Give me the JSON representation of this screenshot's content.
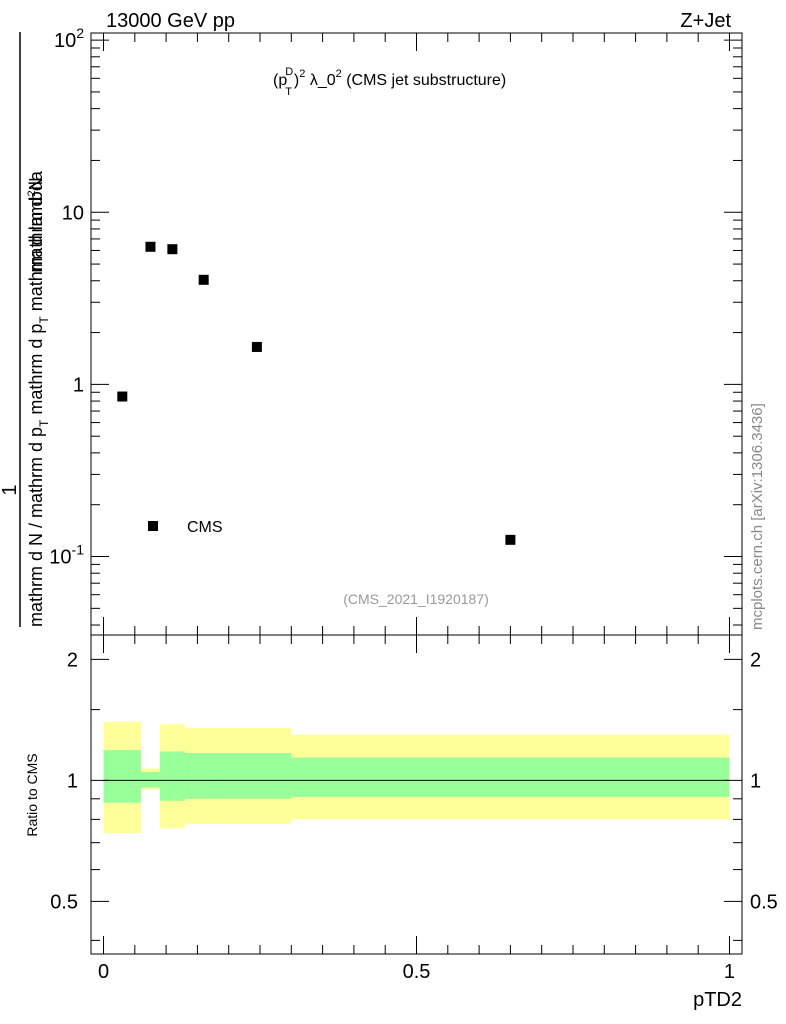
{
  "header": {
    "energy_label": "13000 GeV pp",
    "process_label": "Z+Jet",
    "watermark": "mcplots.cern.ch [arXiv:1306.3436]"
  },
  "chart_data": [
    {
      "type": "scatter",
      "panel": "main",
      "title": "(p_T^D)^2 λ_0^2 (CMS jet substructure)",
      "title_parts": {
        "p": "(p",
        "sub": "T",
        "sup_d": "D",
        "rest": ")",
        "sup2": "2",
        "lambda": " λ_0",
        "sup3": "2",
        "tail": " (CMS jet substructure)"
      },
      "ylabel_parts": {
        "numerator": "1",
        "denominator": "mathrm d N / mathrm d p",
        "denom_sub": "T",
        "denom_tail": " mathrm d p",
        "denom_sub2": "T",
        "denom_end": " mathrm d lambda",
        "frac_num": "mathrm d",
        "frac_sup": "2",
        "frac_num_end": "N"
      },
      "yscale": "log",
      "ylim": [
        0.035,
        110
      ],
      "xlim": [
        -0.02,
        1.02
      ],
      "y_ticks": [
        "10^-1",
        "1",
        "10",
        "10^2"
      ],
      "legend": {
        "placement": "bottom-left",
        "entries": [
          "CMS"
        ]
      },
      "annotation": "(CMS_2021_I1920187)",
      "series": [
        {
          "name": "CMS",
          "marker": "square",
          "color": "#000000",
          "x": [
            0.03,
            0.075,
            0.11,
            0.16,
            0.245,
            0.65
          ],
          "y": [
            0.85,
            6.3,
            6.1,
            4.05,
            1.65,
            0.125
          ]
        }
      ]
    },
    {
      "type": "area",
      "panel": "ratio",
      "ylabel": "Ratio to CMS",
      "xlabel": "pTD2",
      "ylim": [
        0.37,
        2.3
      ],
      "xlim": [
        -0.02,
        1.02
      ],
      "y_ticks": [
        "0.5",
        "1",
        "2"
      ],
      "x_ticks": [
        "0",
        "0.5",
        "1"
      ],
      "reference_line": 1,
      "bands": [
        {
          "color": "#ffff99",
          "name": "",
          "bins": [
            [
              0,
              0.06,
              0.74,
              1.4
            ],
            [
              0.06,
              0.09,
              0.95,
              1.07
            ],
            [
              0.09,
              0.13,
              0.76,
              1.38
            ],
            [
              0.13,
              0.19,
              0.78,
              1.35
            ],
            [
              0.19,
              0.3,
              0.78,
              1.35
            ],
            [
              0.3,
              1.0,
              0.8,
              1.3
            ]
          ]
        },
        {
          "color": "#99ff99",
          "name": "",
          "bins": [
            [
              0,
              0.06,
              0.88,
              1.19
            ],
            [
              0.06,
              0.09,
              0.96,
              1.05
            ],
            [
              0.09,
              0.13,
              0.89,
              1.18
            ],
            [
              0.13,
              0.19,
              0.9,
              1.17
            ],
            [
              0.19,
              0.3,
              0.9,
              1.17
            ],
            [
              0.3,
              1.0,
              0.91,
              1.14
            ]
          ]
        }
      ]
    }
  ]
}
